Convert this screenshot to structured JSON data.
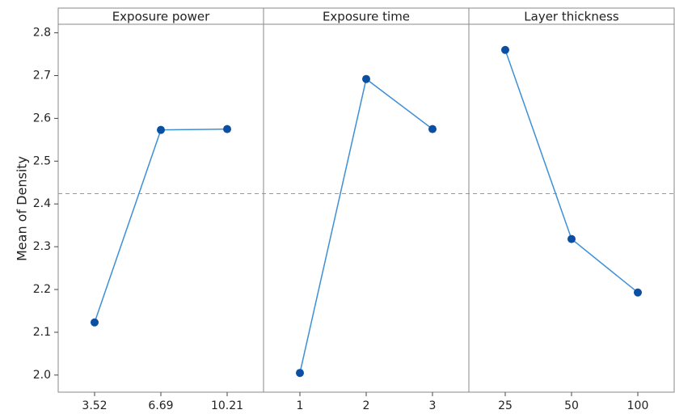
{
  "chart_data": {
    "type": "line",
    "y_label": "Mean of Density",
    "ylim": [
      1.96,
      2.82
    ],
    "yticks": [
      2.0,
      2.1,
      2.2,
      2.3,
      2.4,
      2.5,
      2.6,
      2.7,
      2.8
    ],
    "yticks_labels": [
      "2.0",
      "2.1",
      "2.2",
      "2.3",
      "2.4",
      "2.5",
      "2.6",
      "2.7",
      "2.8"
    ],
    "reference_line": 2.424,
    "line_color": "#3d8fd6",
    "marker_color": "#0b4fa3",
    "panels": [
      {
        "title": "Exposure power",
        "categories": [
          "3.52",
          "6.69",
          "10.21"
        ],
        "values": [
          2.123,
          2.573,
          2.575
        ]
      },
      {
        "title": "Exposure time",
        "categories": [
          "1",
          "2",
          "3"
        ],
        "values": [
          2.005,
          2.692,
          2.575
        ]
      },
      {
        "title": "Layer thickness",
        "categories": [
          "25",
          "50",
          "100"
        ],
        "values": [
          2.76,
          2.318,
          2.193
        ]
      }
    ]
  }
}
